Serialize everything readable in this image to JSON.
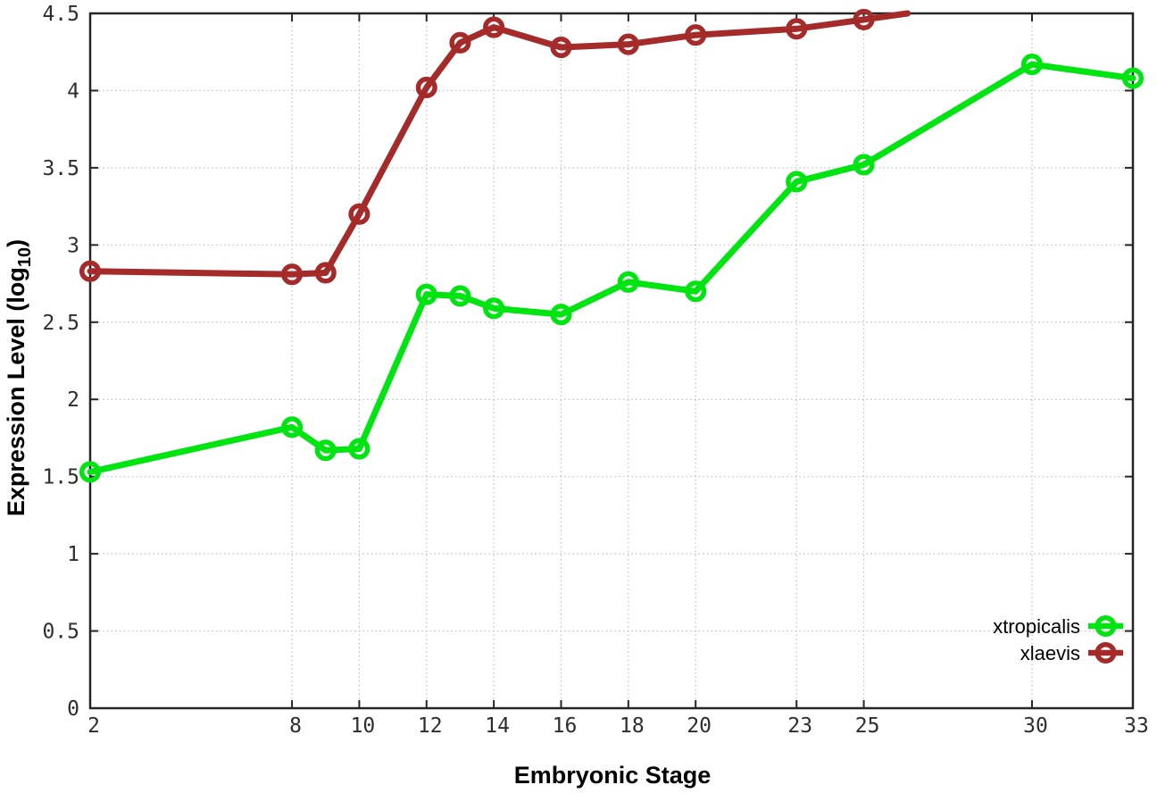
{
  "figure": {
    "background": "#ffffff",
    "border_color": "#262626",
    "grid_color": "#bdbdbd",
    "tick_label_color": "#2e2e2e",
    "ylabel_parts": {
      "main": "Expression Level (log",
      "sub": "10",
      "end": ")"
    }
  },
  "chart_data": {
    "type": "line",
    "title": "",
    "xlabel": "Embryonic Stage",
    "ylabel": "Expression Level (log10)",
    "xlim": [
      2,
      33
    ],
    "ylim": [
      0,
      4.5
    ],
    "x_ticks": [
      2,
      8,
      10,
      12,
      14,
      16,
      18,
      20,
      23,
      25,
      30,
      33
    ],
    "y_ticks": [
      0,
      0.5,
      1,
      1.5,
      2,
      2.5,
      3,
      3.5,
      4,
      4.5
    ],
    "grid": true,
    "grid_style": "dotted",
    "legend_position": "inside-bottom-right",
    "marker": "open-circle",
    "series": [
      {
        "name": "xtropicalis",
        "color": "#00e412",
        "x": [
          2,
          8,
          9,
          10,
          12,
          13,
          14,
          16,
          18,
          20,
          23,
          25,
          30,
          33
        ],
        "y": [
          1.53,
          1.82,
          1.67,
          1.68,
          2.68,
          2.67,
          2.59,
          2.55,
          2.76,
          2.7,
          3.41,
          3.52,
          4.17,
          4.08
        ]
      },
      {
        "name": "xlaevis",
        "color": "#a52a2a",
        "x": [
          2,
          8,
          9,
          10,
          12,
          13,
          14,
          16,
          18,
          20,
          23,
          25
        ],
        "y": [
          2.83,
          2.81,
          2.82,
          3.2,
          4.02,
          4.31,
          4.41,
          4.28,
          4.3,
          4.36,
          4.4,
          4.46
        ],
        "line_exit": {
          "x": 26.3,
          "y": 4.5,
          "note": "line continues upward and is clipped at top axis (4.5)"
        }
      }
    ]
  }
}
